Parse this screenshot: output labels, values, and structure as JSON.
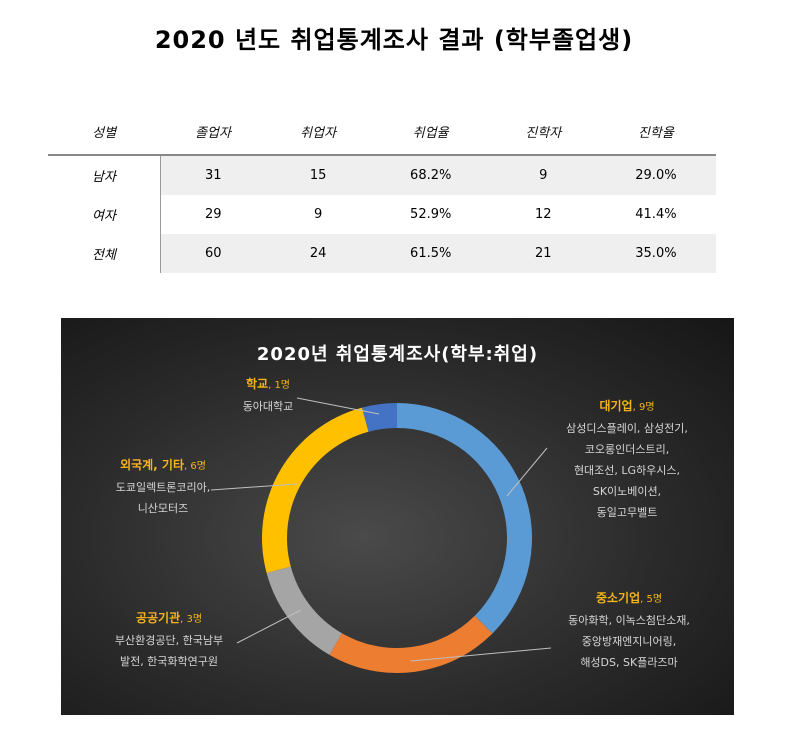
{
  "page_title": "2020 년도 취업통계조사 결과 (학부졸업생)",
  "table": {
    "headers": [
      "성별",
      "졸업자",
      "취업자",
      "취업율",
      "진학자",
      "진학율"
    ],
    "rows": [
      {
        "label": "남자",
        "cells": [
          "31",
          "15",
          "68.2%",
          "9",
          "29.0%"
        ]
      },
      {
        "label": "여자",
        "cells": [
          "29",
          "9",
          "52.9%",
          "12",
          "41.4%"
        ]
      },
      {
        "label": "전체",
        "cells": [
          "60",
          "24",
          "61.5%",
          "21",
          "35.0%"
        ]
      }
    ]
  },
  "chart_data": {
    "type": "pie",
    "title": "2020년 취업통계조사(학부:취업)",
    "slices": [
      {
        "name": "대기업",
        "count_label": "9명",
        "value": 9,
        "color": "#5b9bd5",
        "details": [
          "삼성디스플레이, 삼성전기,",
          "코오롱인더스트리,",
          "현대조선, LG하우시스,",
          "SK이노베이션,",
          "동일고무벨트"
        ]
      },
      {
        "name": "중소기업",
        "count_label": "5명",
        "value": 5,
        "color": "#ed7d31",
        "details": [
          "동아화학, 이녹스첨단소재,",
          "중앙방재엔지니어링,",
          "해성DS, SK플라즈마"
        ]
      },
      {
        "name": "공공기관",
        "count_label": "3명",
        "value": 3,
        "color": "#a5a5a5",
        "details": [
          "부산환경공단, 한국남부",
          "발전, 한국화학연구원"
        ]
      },
      {
        "name": "외국계, 기타",
        "count_label": "6명",
        "value": 6,
        "color": "#ffc000",
        "details": [
          "도쿄일렉트론코리아,",
          "니산모터즈"
        ]
      },
      {
        "name": "학교",
        "count_label": "1명",
        "value": 1,
        "color": "#4472c4",
        "details": [
          "동아대학교"
        ]
      }
    ]
  }
}
